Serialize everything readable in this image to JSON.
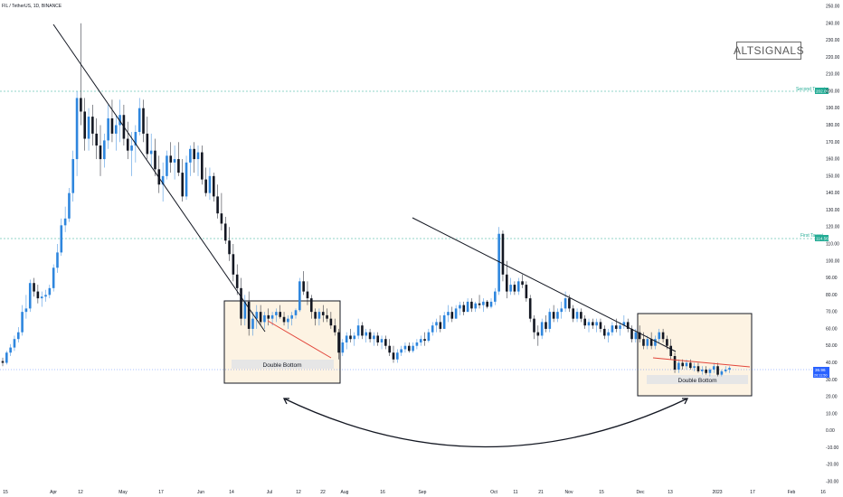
{
  "header": {
    "title": "FIL / TetherUS, 1D, BINANCE"
  },
  "logo": {
    "text": "ALTSIGNALS"
  },
  "colors": {
    "up": "#2e86de",
    "down": "#131722",
    "trendline": "#131722",
    "wedge": "#e2463b",
    "box_fill": "#fdf3e3",
    "target": "#22ab94",
    "price_tag": "#2962ff"
  },
  "annotations": {
    "box_left_label": "Double Bottom",
    "box_right_label": "Double Bottom",
    "second_target_label": "Second Target",
    "first_target_label": "First Target",
    "second_target_value": "202.00",
    "first_target_value": "114.56",
    "current_price": "36.96",
    "current_price_sub": "20:11:50"
  },
  "chart_data": {
    "type": "candlestick",
    "title": "FIL / TetherUS, 1D, BINANCE",
    "y_scale": "linear",
    "ylim": [
      -35,
      255
    ],
    "y_ticks": [
      "250.00",
      "240.00",
      "230.00",
      "220.00",
      "210.00",
      "200.00",
      "190.00",
      "180.00",
      "170.00",
      "160.00",
      "150.00",
      "140.00",
      "130.00",
      "120.00",
      "110.00",
      "100.00",
      "90.00",
      "80.00",
      "70.00",
      "60.00",
      "50.00",
      "40.00",
      "30.00",
      "20.00",
      "10.00",
      "0.00",
      "-10.00",
      "-20.00",
      "-30.00"
    ],
    "x_ticks": [
      "15",
      "Apr",
      "12",
      "May",
      "17",
      "Jun",
      "14",
      "Jul",
      "12",
      "22",
      "Aug",
      "16",
      "Sep",
      "Oct",
      "11",
      "21",
      "Nov",
      "15",
      "Dec",
      "13",
      "2023",
      "17",
      "Feb",
      "16"
    ],
    "second_target": 202.0,
    "first_target": 114.56,
    "current_price": 36.96,
    "ohlc": [
      [
        0,
        41,
        43,
        38,
        40
      ],
      [
        1,
        40,
        47,
        39,
        46
      ],
      [
        2,
        46,
        51,
        44,
        49
      ],
      [
        3,
        49,
        56,
        47,
        54
      ],
      [
        4,
        54,
        61,
        52,
        58
      ],
      [
        5,
        58,
        74,
        56,
        70
      ],
      [
        6,
        70,
        80,
        66,
        72
      ],
      [
        7,
        72,
        89,
        70,
        87
      ],
      [
        8,
        87,
        90,
        79,
        82
      ],
      [
        9,
        82,
        86,
        75,
        78
      ],
      [
        10,
        78,
        82,
        73,
        79
      ],
      [
        11,
        79,
        83,
        76,
        80
      ],
      [
        12,
        80,
        86,
        78,
        84
      ],
      [
        13,
        84,
        98,
        82,
        96
      ],
      [
        14,
        96,
        110,
        93,
        105
      ],
      [
        15,
        105,
        125,
        103,
        121
      ],
      [
        16,
        121,
        132,
        117,
        125
      ],
      [
        17,
        125,
        143,
        123,
        140
      ],
      [
        18,
        140,
        165,
        135,
        160
      ],
      [
        19,
        160,
        200,
        150,
        196
      ],
      [
        20,
        196,
        240,
        180,
        188
      ],
      [
        21,
        188,
        196,
        165,
        172
      ],
      [
        22,
        172,
        190,
        165,
        185
      ],
      [
        23,
        185,
        192,
        168,
        175
      ],
      [
        24,
        175,
        184,
        160,
        168
      ],
      [
        25,
        168,
        180,
        150,
        160
      ],
      [
        26,
        160,
        175,
        155,
        171
      ],
      [
        27,
        171,
        192,
        166,
        184
      ],
      [
        28,
        184,
        195,
        170,
        175
      ],
      [
        29,
        175,
        186,
        165,
        180
      ],
      [
        30,
        180,
        195,
        170,
        186
      ],
      [
        31,
        186,
        192,
        168,
        172
      ],
      [
        32,
        172,
        182,
        160,
        165
      ],
      [
        33,
        165,
        176,
        150,
        168
      ],
      [
        34,
        168,
        180,
        158,
        176
      ],
      [
        35,
        176,
        196,
        174,
        190
      ],
      [
        36,
        190,
        195,
        170,
        175
      ],
      [
        37,
        175,
        185,
        160,
        163
      ],
      [
        38,
        163,
        175,
        155,
        165
      ],
      [
        39,
        165,
        172,
        150,
        154
      ],
      [
        40,
        154,
        162,
        140,
        145
      ],
      [
        41,
        145,
        158,
        135,
        150
      ],
      [
        42,
        150,
        165,
        148,
        162
      ],
      [
        43,
        162,
        170,
        152,
        158
      ],
      [
        44,
        158,
        168,
        148,
        160
      ],
      [
        45,
        160,
        170,
        150,
        152
      ],
      [
        46,
        152,
        160,
        135,
        138
      ],
      [
        47,
        138,
        162,
        136,
        158
      ],
      [
        48,
        158,
        168,
        150,
        166
      ],
      [
        49,
        166,
        170,
        152,
        160
      ],
      [
        50,
        160,
        168,
        150,
        164
      ],
      [
        51,
        164,
        168,
        145,
        148
      ],
      [
        52,
        148,
        155,
        138,
        140
      ],
      [
        53,
        140,
        155,
        136,
        150
      ],
      [
        54,
        150,
        152,
        135,
        138
      ],
      [
        55,
        138,
        145,
        125,
        128
      ],
      [
        56,
        128,
        140,
        118,
        122
      ],
      [
        57,
        122,
        126,
        110,
        112
      ],
      [
        58,
        112,
        120,
        100,
        104
      ],
      [
        59,
        104,
        110,
        88,
        92
      ],
      [
        60,
        92,
        98,
        80,
        84
      ],
      [
        61,
        84,
        90,
        62,
        66
      ],
      [
        62,
        66,
        80,
        62,
        76
      ],
      [
        63,
        76,
        82,
        56,
        60
      ],
      [
        64,
        60,
        70,
        56,
        66
      ],
      [
        65,
        66,
        74,
        60,
        70
      ],
      [
        66,
        70,
        74,
        62,
        64
      ],
      [
        67,
        64,
        70,
        60,
        68
      ],
      [
        68,
        68,
        72,
        62,
        66
      ],
      [
        69,
        66,
        70,
        62,
        68
      ],
      [
        70,
        68,
        72,
        64,
        70
      ],
      [
        71,
        70,
        74,
        66,
        67
      ],
      [
        72,
        67,
        70,
        62,
        64
      ],
      [
        73,
        64,
        68,
        60,
        66
      ],
      [
        74,
        66,
        70,
        62,
        68
      ],
      [
        75,
        68,
        72,
        66,
        71
      ],
      [
        76,
        71,
        90,
        70,
        88
      ],
      [
        77,
        88,
        94,
        80,
        82
      ],
      [
        78,
        82,
        88,
        74,
        78
      ],
      [
        79,
        78,
        80,
        66,
        70
      ],
      [
        80,
        70,
        72,
        62,
        66
      ],
      [
        81,
        66,
        72,
        62,
        70
      ],
      [
        82,
        70,
        74,
        64,
        68
      ],
      [
        83,
        68,
        72,
        64,
        66
      ],
      [
        84,
        66,
        70,
        60,
        62
      ],
      [
        85,
        62,
        66,
        56,
        58
      ],
      [
        86,
        58,
        60,
        42,
        46
      ],
      [
        87,
        46,
        54,
        44,
        52
      ],
      [
        88,
        52,
        58,
        48,
        56
      ],
      [
        89,
        56,
        60,
        52,
        54
      ],
      [
        90,
        54,
        58,
        50,
        56
      ],
      [
        91,
        56,
        66,
        54,
        62
      ],
      [
        92,
        62,
        64,
        54,
        56
      ],
      [
        93,
        56,
        60,
        52,
        58
      ],
      [
        94,
        58,
        60,
        52,
        54
      ],
      [
        95,
        54,
        58,
        50,
        56
      ],
      [
        96,
        56,
        58,
        50,
        52
      ],
      [
        97,
        52,
        56,
        48,
        54
      ],
      [
        98,
        54,
        56,
        48,
        50
      ],
      [
        99,
        50,
        54,
        44,
        46
      ],
      [
        100,
        46,
        50,
        40,
        42
      ],
      [
        101,
        42,
        48,
        40,
        46
      ],
      [
        102,
        46,
        50,
        44,
        48
      ],
      [
        103,
        48,
        52,
        46,
        50
      ],
      [
        104,
        50,
        52,
        46,
        47
      ],
      [
        105,
        47,
        52,
        46,
        50
      ],
      [
        106,
        50,
        54,
        48,
        52
      ],
      [
        107,
        52,
        56,
        50,
        54
      ],
      [
        108,
        54,
        58,
        50,
        53
      ],
      [
        109,
        53,
        60,
        52,
        58
      ],
      [
        110,
        58,
        64,
        56,
        62
      ],
      [
        111,
        62,
        66,
        58,
        64
      ],
      [
        112,
        64,
        68,
        58,
        60
      ],
      [
        113,
        60,
        70,
        60,
        68
      ],
      [
        114,
        68,
        74,
        64,
        70
      ],
      [
        115,
        70,
        73,
        64,
        66
      ],
      [
        116,
        66,
        74,
        66,
        72
      ],
      [
        117,
        72,
        76,
        68,
        74
      ],
      [
        118,
        74,
        76,
        68,
        70
      ],
      [
        119,
        70,
        78,
        70,
        76
      ],
      [
        120,
        76,
        78,
        70,
        72
      ],
      [
        121,
        72,
        76,
        70,
        75
      ],
      [
        122,
        75,
        80,
        72,
        74
      ],
      [
        123,
        74,
        78,
        70,
        76
      ],
      [
        124,
        76,
        77,
        72,
        73
      ],
      [
        125,
        73,
        78,
        72,
        76
      ],
      [
        126,
        76,
        84,
        74,
        82
      ],
      [
        127,
        82,
        120,
        80,
        116
      ],
      [
        128,
        116,
        118,
        88,
        92
      ],
      [
        129,
        92,
        100,
        78,
        82
      ],
      [
        130,
        82,
        90,
        80,
        86
      ],
      [
        131,
        86,
        88,
        80,
        82
      ],
      [
        132,
        82,
        90,
        80,
        88
      ],
      [
        133,
        88,
        92,
        84,
        86
      ],
      [
        134,
        86,
        88,
        76,
        78
      ],
      [
        135,
        78,
        80,
        64,
        66
      ],
      [
        136,
        66,
        68,
        54,
        58
      ],
      [
        137,
        58,
        62,
        50,
        56
      ],
      [
        138,
        56,
        66,
        54,
        64
      ],
      [
        139,
        64,
        68,
        58,
        60
      ],
      [
        140,
        60,
        72,
        58,
        70
      ],
      [
        141,
        70,
        74,
        64,
        66
      ],
      [
        142,
        66,
        72,
        64,
        70
      ],
      [
        143,
        70,
        76,
        66,
        72
      ],
      [
        144,
        72,
        82,
        70,
        78
      ],
      [
        145,
        78,
        80,
        70,
        72
      ],
      [
        146,
        72,
        74,
        64,
        66
      ],
      [
        147,
        66,
        72,
        64,
        70
      ],
      [
        148,
        70,
        72,
        64,
        66
      ],
      [
        149,
        66,
        68,
        60,
        62
      ],
      [
        150,
        62,
        66,
        58,
        64
      ],
      [
        151,
        64,
        66,
        60,
        62
      ],
      [
        152,
        62,
        66,
        58,
        64
      ],
      [
        153,
        64,
        66,
        58,
        60
      ],
      [
        154,
        60,
        62,
        54,
        56
      ],
      [
        155,
        56,
        60,
        52,
        58
      ],
      [
        156,
        58,
        64,
        56,
        62
      ],
      [
        157,
        62,
        66,
        58,
        60
      ],
      [
        158,
        60,
        64,
        56,
        62
      ],
      [
        159,
        62,
        68,
        60,
        64
      ],
      [
        160,
        64,
        66,
        58,
        60
      ],
      [
        161,
        60,
        62,
        52,
        54
      ],
      [
        162,
        54,
        60,
        52,
        58
      ],
      [
        163,
        58,
        62,
        52,
        54
      ],
      [
        164,
        54,
        58,
        48,
        50
      ],
      [
        165,
        50,
        56,
        48,
        54
      ],
      [
        166,
        54,
        58,
        48,
        50
      ],
      [
        167,
        50,
        56,
        48,
        54
      ],
      [
        168,
        54,
        60,
        52,
        58
      ],
      [
        169,
        58,
        60,
        52,
        54
      ],
      [
        170,
        54,
        56,
        48,
        50
      ],
      [
        171,
        50,
        54,
        42,
        44
      ],
      [
        172,
        44,
        46,
        34,
        36
      ],
      [
        173,
        36,
        42,
        34,
        40
      ],
      [
        174,
        40,
        42,
        36,
        38
      ],
      [
        175,
        38,
        42,
        36,
        40
      ],
      [
        176,
        40,
        42,
        36,
        37
      ],
      [
        177,
        37,
        40,
        35,
        38
      ],
      [
        178,
        38,
        40,
        34,
        35
      ],
      [
        179,
        35,
        38,
        33,
        36
      ],
      [
        180,
        36,
        38,
        33,
        34
      ],
      [
        181,
        34,
        37,
        32,
        36
      ],
      [
        182,
        36,
        40,
        34,
        38
      ],
      [
        183,
        38,
        40,
        32,
        33
      ],
      [
        184,
        33,
        36,
        32,
        35
      ],
      [
        185,
        35,
        38,
        34,
        36
      ],
      [
        186,
        36,
        38,
        34,
        37
      ]
    ]
  }
}
